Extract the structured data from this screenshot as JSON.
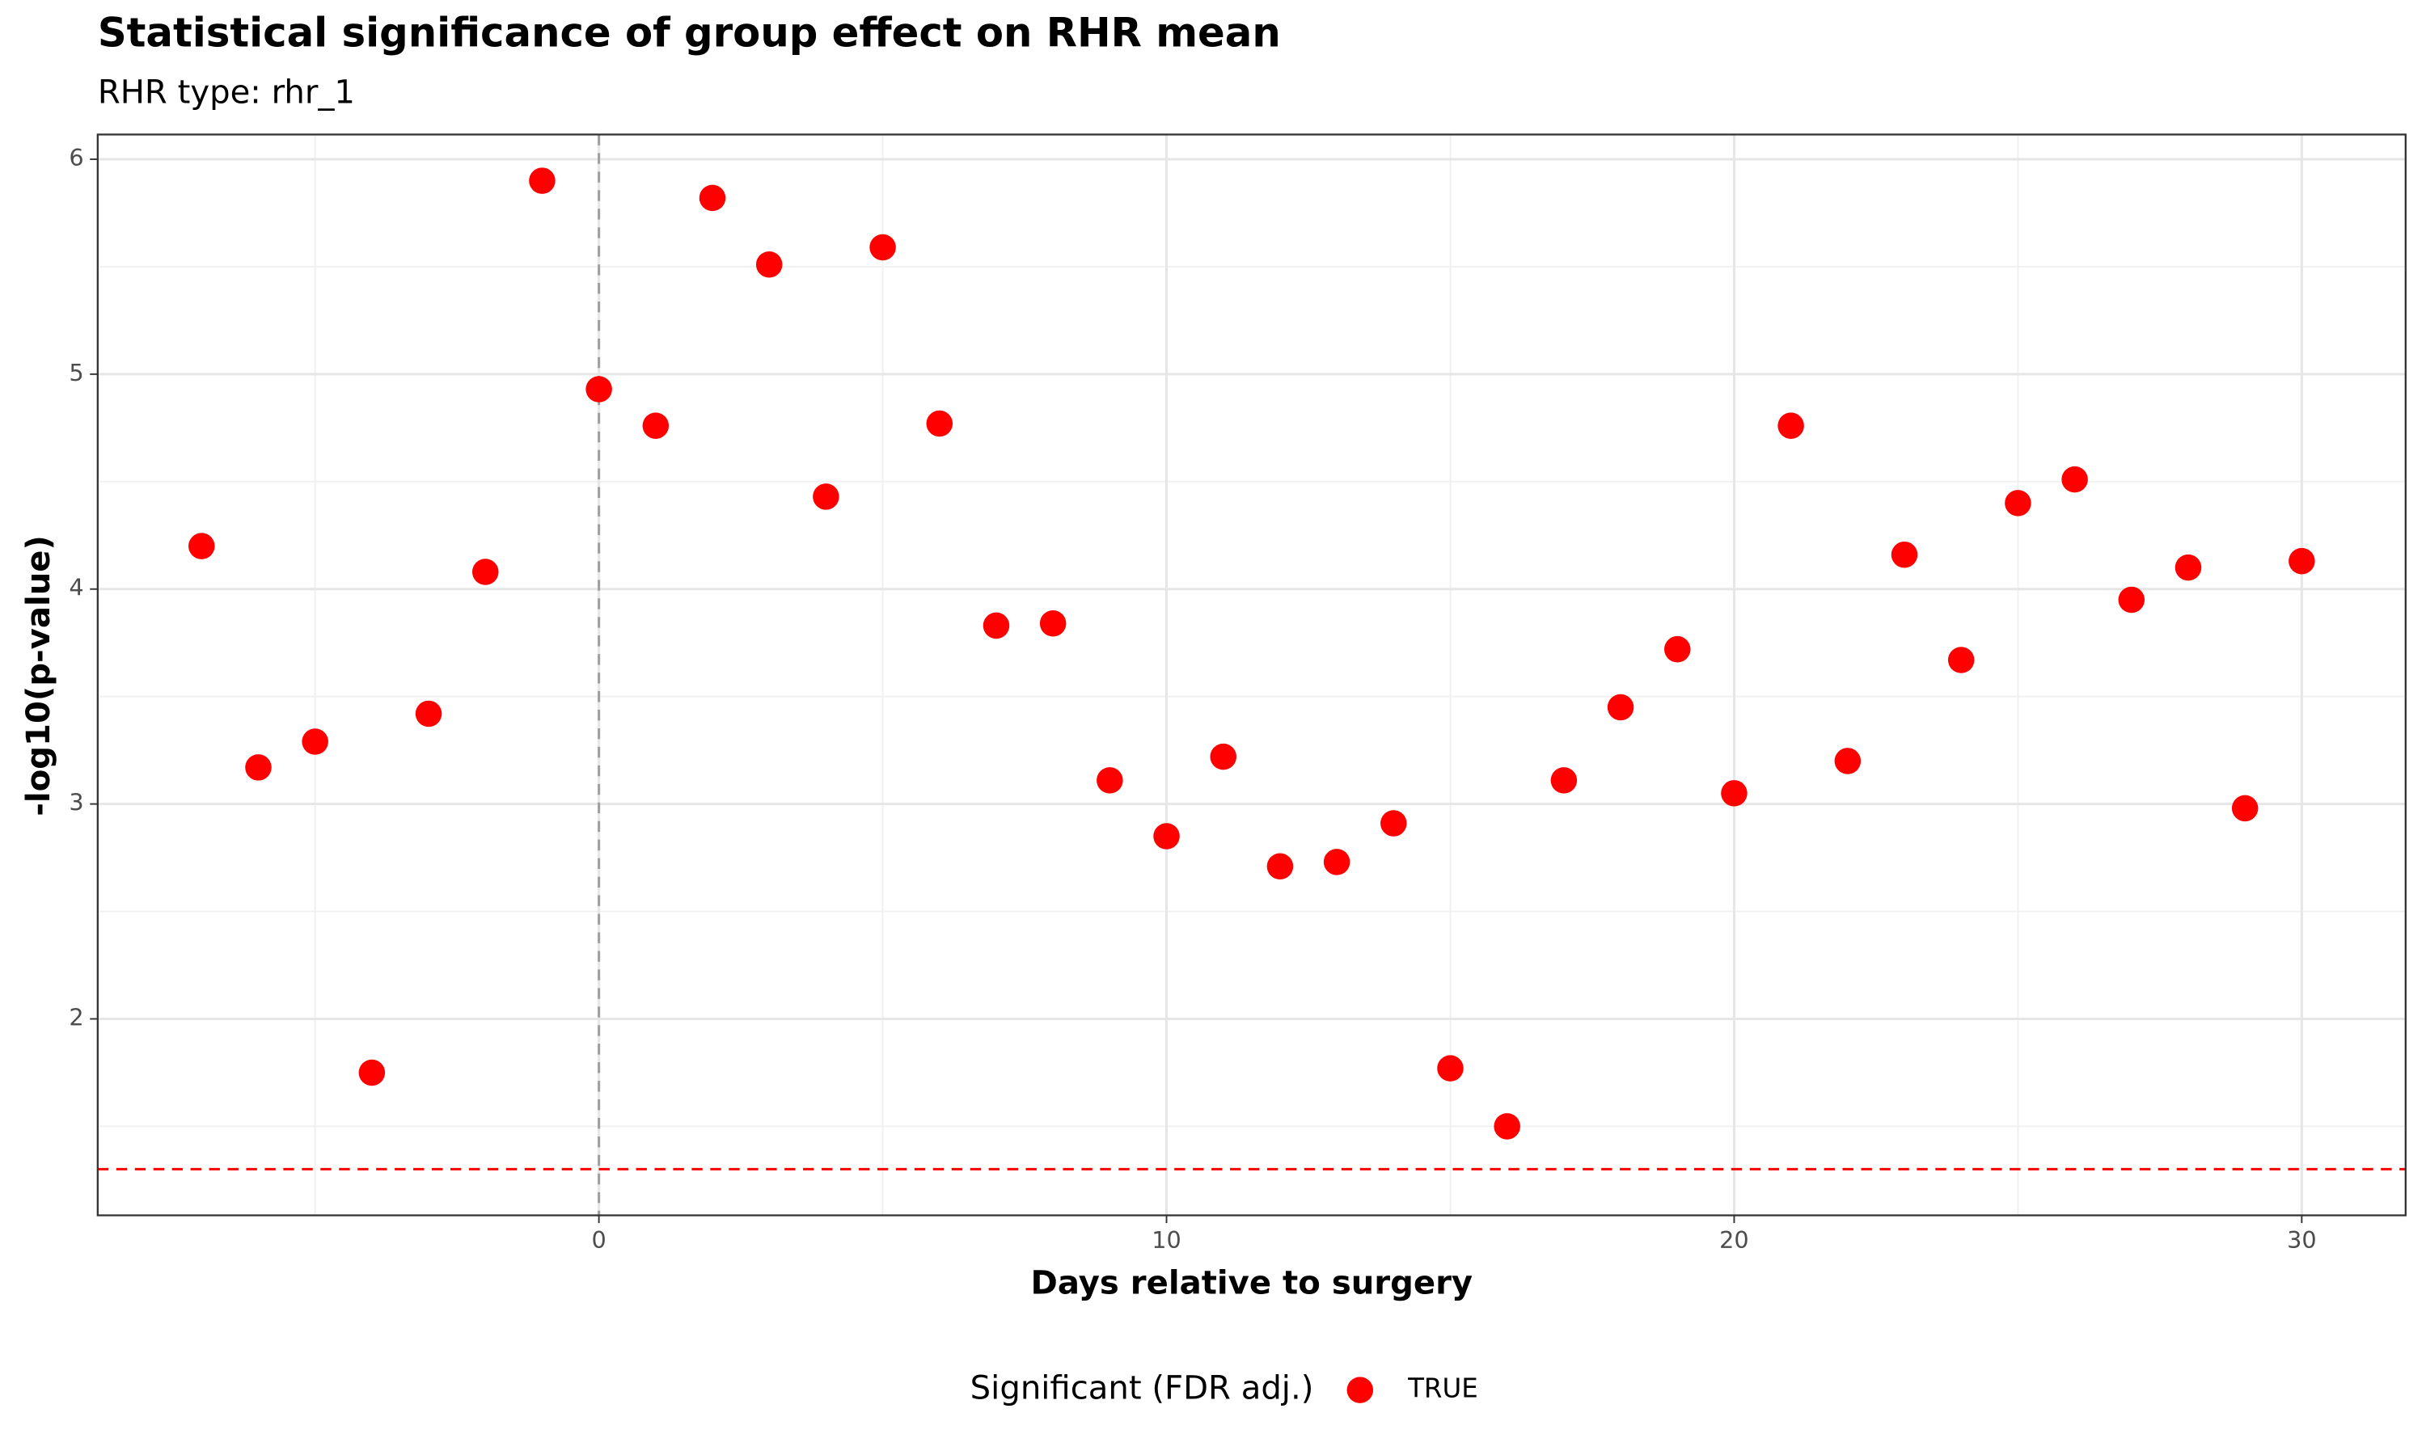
{
  "chart_data": {
    "type": "scatter",
    "title": "Statistical significance of group effect on RHR mean",
    "subtitle": "RHR type: rhr_1",
    "x_label": "Days relative to surgery",
    "y_label": "-log10(p-value)",
    "legend_title": "Significant (FDR adj.)",
    "x": [
      -7,
      -6,
      -5,
      -4,
      -3,
      -2,
      -1,
      0,
      1,
      2,
      3,
      4,
      5,
      6,
      7,
      8,
      9,
      10,
      11,
      12,
      13,
      14,
      15,
      16,
      17,
      18,
      19,
      20,
      21,
      22,
      23,
      24,
      25,
      26,
      27,
      28,
      29,
      30
    ],
    "series": [
      {
        "name": "TRUE",
        "color": "#ff0000",
        "values": [
          4.2,
          3.17,
          3.29,
          1.75,
          3.42,
          4.08,
          5.9,
          4.93,
          4.76,
          5.82,
          5.51,
          4.43,
          5.59,
          4.77,
          3.83,
          3.84,
          3.11,
          2.85,
          3.22,
          2.71,
          2.73,
          2.91,
          1.77,
          1.5,
          3.11,
          3.45,
          3.72,
          3.05,
          4.76,
          3.2,
          4.16,
          3.67,
          4.4,
          4.51,
          3.95,
          4.1,
          2.98,
          4.13
        ]
      }
    ],
    "xlim": [
      -8.83,
      31.83
    ],
    "xticks": [
      0,
      10,
      20,
      30
    ],
    "ylim": [
      1.086,
      6.115
    ],
    "yticks": [
      2,
      3,
      4,
      5,
      6
    ],
    "grid": true,
    "hline": 1.301,
    "hline_color": "#ff0000",
    "vline": 0,
    "vline_color": "#a0a0a0",
    "legend_position": "bottom"
  }
}
